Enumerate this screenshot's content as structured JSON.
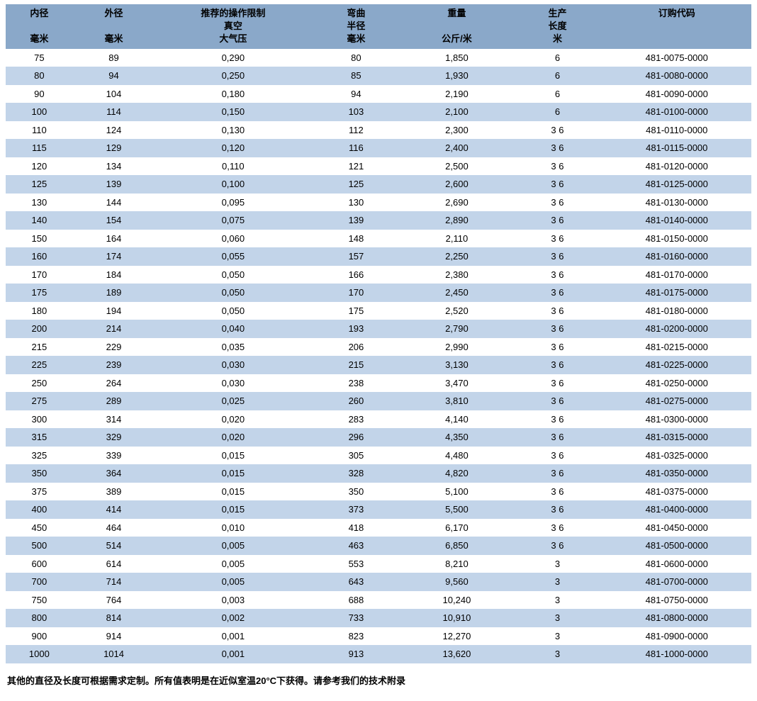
{
  "colors": {
    "header_bg": "#8aa8c9",
    "row_odd_bg": "#ffffff",
    "row_even_bg": "#c2d4e9",
    "text": "#000000"
  },
  "table": {
    "columns": [
      {
        "line1": "内径",
        "line2": "",
        "line3": "毫米"
      },
      {
        "line1": "外径",
        "line2": "",
        "line3": "毫米"
      },
      {
        "line1": "推荐的操作限制",
        "line2": "真空",
        "line3": "大气压"
      },
      {
        "line1": "弯曲",
        "line2": "半径",
        "line3": "毫米"
      },
      {
        "line1": "重量",
        "line2": "",
        "line3": "公斤/米"
      },
      {
        "line1": "生产",
        "line2": "长度",
        "line3": "米"
      },
      {
        "line1": "订购代码",
        "line2": "",
        "line3": ""
      }
    ],
    "rows": [
      [
        "75",
        "89",
        "0,290",
        "80",
        "1,850",
        "6",
        "481-0075-0000"
      ],
      [
        "80",
        "94",
        "0,250",
        "85",
        "1,930",
        "6",
        "481-0080-0000"
      ],
      [
        "90",
        "104",
        "0,180",
        "94",
        "2,190",
        "6",
        "481-0090-0000"
      ],
      [
        "100",
        "114",
        "0,150",
        "103",
        "2,100",
        "6",
        "481-0100-0000"
      ],
      [
        "110",
        "124",
        "0,130",
        "112",
        "2,300",
        "3 6",
        "481-0110-0000"
      ],
      [
        "115",
        "129",
        "0,120",
        "116",
        "2,400",
        "3 6",
        "481-0115-0000"
      ],
      [
        "120",
        "134",
        "0,110",
        "121",
        "2,500",
        "3 6",
        "481-0120-0000"
      ],
      [
        "125",
        "139",
        "0,100",
        "125",
        "2,600",
        "3 6",
        "481-0125-0000"
      ],
      [
        "130",
        "144",
        "0,095",
        "130",
        "2,690",
        "3 6",
        "481-0130-0000"
      ],
      [
        "140",
        "154",
        "0,075",
        "139",
        "2,890",
        "3 6",
        "481-0140-0000"
      ],
      [
        "150",
        "164",
        "0,060",
        "148",
        "2,110",
        "3 6",
        "481-0150-0000"
      ],
      [
        "160",
        "174",
        "0,055",
        "157",
        "2,250",
        "3 6",
        "481-0160-0000"
      ],
      [
        "170",
        "184",
        "0,050",
        "166",
        "2,380",
        "3 6",
        "481-0170-0000"
      ],
      [
        "175",
        "189",
        "0,050",
        "170",
        "2,450",
        "3 6",
        "481-0175-0000"
      ],
      [
        "180",
        "194",
        "0,050",
        "175",
        "2,520",
        "3 6",
        "481-0180-0000"
      ],
      [
        "200",
        "214",
        "0,040",
        "193",
        "2,790",
        "3 6",
        "481-0200-0000"
      ],
      [
        "215",
        "229",
        "0,035",
        "206",
        "2,990",
        "3 6",
        "481-0215-0000"
      ],
      [
        "225",
        "239",
        "0,030",
        "215",
        "3,130",
        "3 6",
        "481-0225-0000"
      ],
      [
        "250",
        "264",
        "0,030",
        "238",
        "3,470",
        "3 6",
        "481-0250-0000"
      ],
      [
        "275",
        "289",
        "0,025",
        "260",
        "3,810",
        "3 6",
        "481-0275-0000"
      ],
      [
        "300",
        "314",
        "0,020",
        "283",
        "4,140",
        "3 6",
        "481-0300-0000"
      ],
      [
        "315",
        "329",
        "0,020",
        "296",
        "4,350",
        "3 6",
        "481-0315-0000"
      ],
      [
        "325",
        "339",
        "0,015",
        "305",
        "4,480",
        "3 6",
        "481-0325-0000"
      ],
      [
        "350",
        "364",
        "0,015",
        "328",
        "4,820",
        "3 6",
        "481-0350-0000"
      ],
      [
        "375",
        "389",
        "0,015",
        "350",
        "5,100",
        "3 6",
        "481-0375-0000"
      ],
      [
        "400",
        "414",
        "0,015",
        "373",
        "5,500",
        "3 6",
        "481-0400-0000"
      ],
      [
        "450",
        "464",
        "0,010",
        "418",
        "6,170",
        "3 6",
        "481-0450-0000"
      ],
      [
        "500",
        "514",
        "0,005",
        "463",
        "6,850",
        "3 6",
        "481-0500-0000"
      ],
      [
        "600",
        "614",
        "0,005",
        "553",
        "8,210",
        "3",
        "481-0600-0000"
      ],
      [
        "700",
        "714",
        "0,005",
        "643",
        "9,560",
        "3",
        "481-0700-0000"
      ],
      [
        "750",
        "764",
        "0,003",
        "688",
        "10,240",
        "3",
        "481-0750-0000"
      ],
      [
        "800",
        "814",
        "0,002",
        "733",
        "10,910",
        "3",
        "481-0800-0000"
      ],
      [
        "900",
        "914",
        "0,001",
        "823",
        "12,270",
        "3",
        "481-0900-0000"
      ],
      [
        "1000",
        "1014",
        "0,001",
        "913",
        "13,620",
        "3",
        "481-1000-0000"
      ]
    ]
  },
  "footnote": "其他的直径及长度可根据需求定制。所有值表明是在近似室温20°C下获得。请参考我们的技术附录"
}
